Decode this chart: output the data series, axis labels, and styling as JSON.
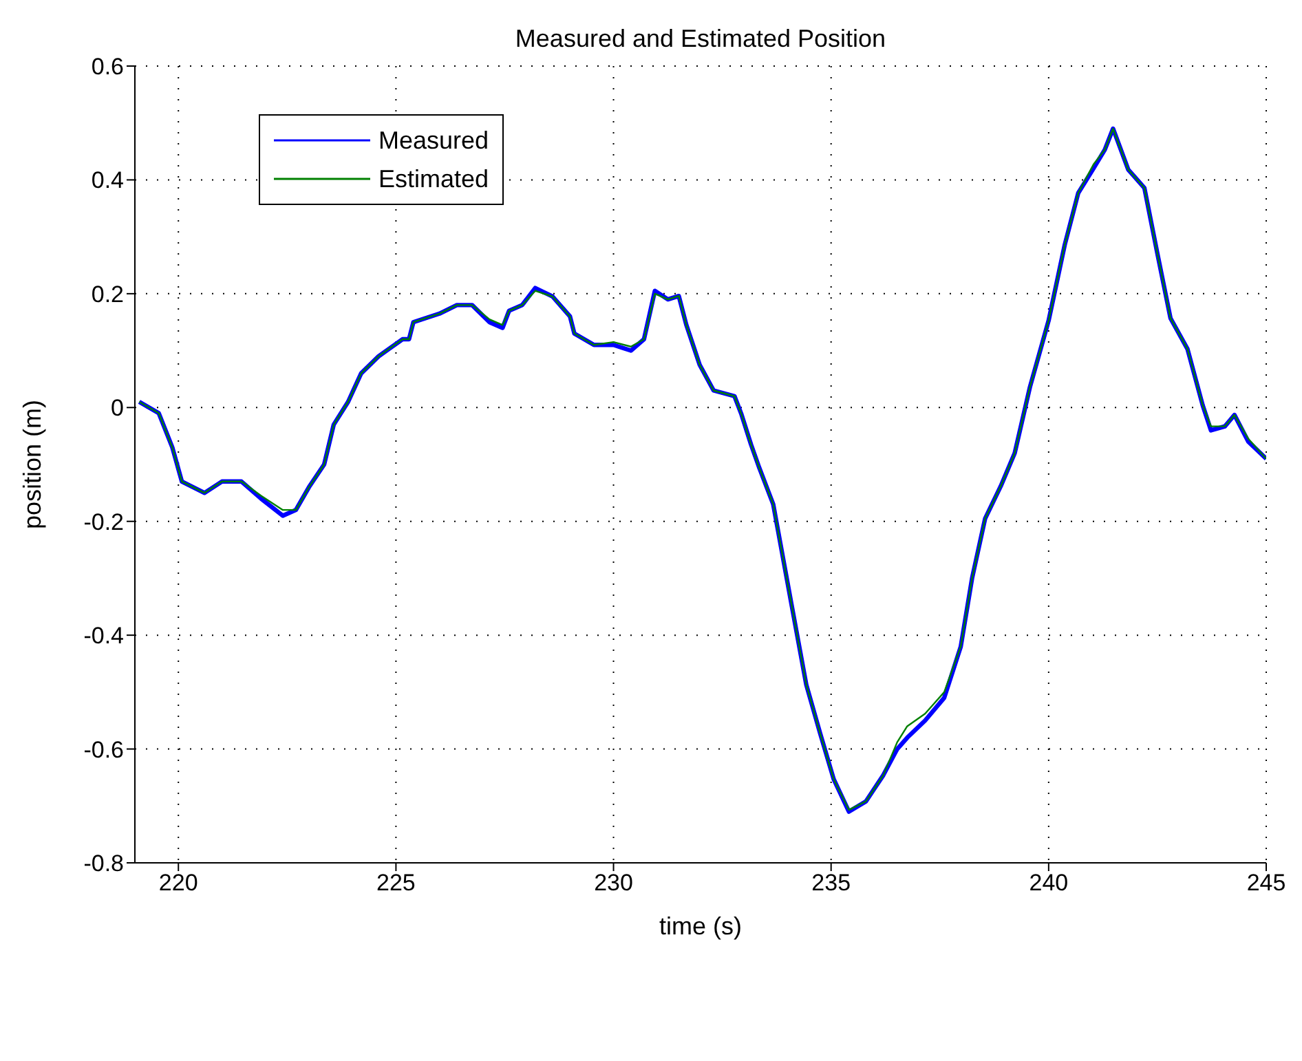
{
  "chart_data": {
    "type": "line",
    "title": "Measured and Estimated Position",
    "xlabel": "time (s)",
    "ylabel": "position (m)",
    "xlim": [
      219,
      245
    ],
    "xticks": [
      220,
      225,
      230,
      235,
      240,
      245
    ],
    "ylim": [
      -0.8,
      0.6
    ],
    "yticks": [
      -0.8,
      -0.6,
      -0.4,
      -0.2,
      0,
      0.2,
      0.4,
      0.6
    ],
    "grid": true,
    "legend": "top left",
    "marker": "none",
    "line_style": "solid",
    "x": [
      219.1,
      219.55,
      219.86,
      220.08,
      220.6,
      221.0,
      221.45,
      221.9,
      222.4,
      222.7,
      223.0,
      223.35,
      223.57,
      223.9,
      224.2,
      224.6,
      225.15,
      225.3,
      225.4,
      226.0,
      226.4,
      226.75,
      227.15,
      227.45,
      227.6,
      227.9,
      228.2,
      228.6,
      229.0,
      229.1,
      229.55,
      230.0,
      230.4,
      230.7,
      230.95,
      231.25,
      231.5,
      231.67,
      231.98,
      232.3,
      232.78,
      232.94,
      233.16,
      233.35,
      233.67,
      234.1,
      234.43,
      234.75,
      235.06,
      235.41,
      235.8,
      236.2,
      236.52,
      236.75,
      237.16,
      237.6,
      237.98,
      238.24,
      238.54,
      238.9,
      239.22,
      239.57,
      240.0,
      240.37,
      240.68,
      241.03,
      241.29,
      241.48,
      241.83,
      242.2,
      242.5,
      242.8,
      243.19,
      243.54,
      243.73,
      244.05,
      244.27,
      244.59,
      245.0
    ],
    "series": [
      {
        "name": "Measured",
        "color": "#0000ff",
        "values": [
          0.01,
          -0.01,
          -0.07,
          -0.13,
          -0.15,
          -0.13,
          -0.13,
          -0.16,
          -0.19,
          -0.18,
          -0.14,
          -0.1,
          -0.03,
          0.01,
          0.06,
          0.09,
          0.12,
          0.12,
          0.15,
          0.165,
          0.18,
          0.18,
          0.15,
          0.14,
          0.17,
          0.18,
          0.21,
          0.195,
          0.16,
          0.13,
          0.11,
          0.11,
          0.1,
          0.12,
          0.205,
          0.19,
          0.196,
          0.146,
          0.075,
          0.03,
          0.02,
          -0.012,
          -0.065,
          -0.106,
          -0.17,
          -0.35,
          -0.487,
          -0.573,
          -0.653,
          -0.71,
          -0.692,
          -0.646,
          -0.6,
          -0.58,
          -0.55,
          -0.51,
          -0.42,
          -0.3,
          -0.195,
          -0.138,
          -0.08,
          0.036,
          0.153,
          0.286,
          0.377,
          0.42,
          0.453,
          0.49,
          0.418,
          0.386,
          0.27,
          0.157,
          0.103,
          0.004,
          -0.04,
          -0.033,
          -0.013,
          -0.06,
          -0.09
        ]
      },
      {
        "name": "Estimated",
        "color": "#008000",
        "values": [
          0.01,
          -0.01,
          -0.07,
          -0.13,
          -0.15,
          -0.13,
          -0.13,
          -0.155,
          -0.18,
          -0.18,
          -0.14,
          -0.1,
          -0.03,
          0.01,
          0.06,
          0.09,
          0.12,
          0.12,
          0.15,
          0.165,
          0.18,
          0.18,
          0.155,
          0.145,
          0.17,
          0.18,
          0.205,
          0.195,
          0.16,
          0.13,
          0.11,
          0.115,
          0.107,
          0.12,
          0.2,
          0.19,
          0.196,
          0.146,
          0.075,
          0.03,
          0.02,
          -0.012,
          -0.065,
          -0.106,
          -0.17,
          -0.35,
          -0.487,
          -0.573,
          -0.653,
          -0.707,
          -0.692,
          -0.646,
          -0.588,
          -0.56,
          -0.538,
          -0.5,
          -0.42,
          -0.3,
          -0.195,
          -0.138,
          -0.08,
          0.036,
          0.153,
          0.286,
          0.377,
          0.427,
          0.453,
          0.49,
          0.418,
          0.386,
          0.27,
          0.157,
          0.103,
          0.004,
          -0.033,
          -0.033,
          -0.013,
          -0.055,
          -0.09
        ]
      }
    ]
  }
}
